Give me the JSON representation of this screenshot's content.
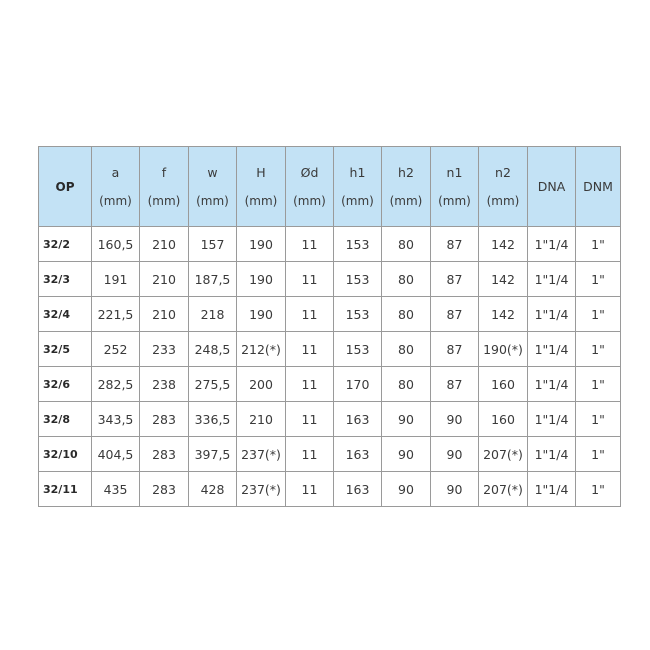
{
  "table": {
    "columns": [
      {
        "name": "OP",
        "unit": ""
      },
      {
        "name": "a",
        "unit": "(mm)"
      },
      {
        "name": "f",
        "unit": "(mm)"
      },
      {
        "name": "w",
        "unit": "(mm)"
      },
      {
        "name": "H",
        "unit": "(mm)"
      },
      {
        "name": "Ød",
        "unit": "(mm)"
      },
      {
        "name": "h1",
        "unit": "(mm)"
      },
      {
        "name": "h2",
        "unit": "(mm)"
      },
      {
        "name": "n1",
        "unit": "(mm)"
      },
      {
        "name": "n2",
        "unit": "(mm)"
      },
      {
        "name": "DNA",
        "unit": ""
      },
      {
        "name": "DNM",
        "unit": ""
      }
    ],
    "rows": [
      [
        "32/2",
        "160,5",
        "210",
        "157",
        "190",
        "11",
        "153",
        "80",
        "87",
        "142",
        "1\"1/4",
        "1\""
      ],
      [
        "32/3",
        "191",
        "210",
        "187,5",
        "190",
        "11",
        "153",
        "80",
        "87",
        "142",
        "1\"1/4",
        "1\""
      ],
      [
        "32/4",
        "221,5",
        "210",
        "218",
        "190",
        "11",
        "153",
        "80",
        "87",
        "142",
        "1\"1/4",
        "1\""
      ],
      [
        "32/5",
        "252",
        "233",
        "248,5",
        "212(*)",
        "11",
        "153",
        "80",
        "87",
        "190(*)",
        "1\"1/4",
        "1\""
      ],
      [
        "32/6",
        "282,5",
        "238",
        "275,5",
        "200",
        "11",
        "170",
        "80",
        "87",
        "160",
        "1\"1/4",
        "1\""
      ],
      [
        "32/8",
        "343,5",
        "283",
        "336,5",
        "210",
        "11",
        "163",
        "90",
        "90",
        "160",
        "1\"1/4",
        "1\""
      ],
      [
        "32/10",
        "404,5",
        "283",
        "397,5",
        "237(*)",
        "11",
        "163",
        "90",
        "90",
        "207(*)",
        "1\"1/4",
        "1\""
      ],
      [
        "32/11",
        "435",
        "283",
        "428",
        "237(*)",
        "11",
        "163",
        "90",
        "90",
        "207(*)",
        "1\"1/4",
        "1\""
      ]
    ]
  }
}
